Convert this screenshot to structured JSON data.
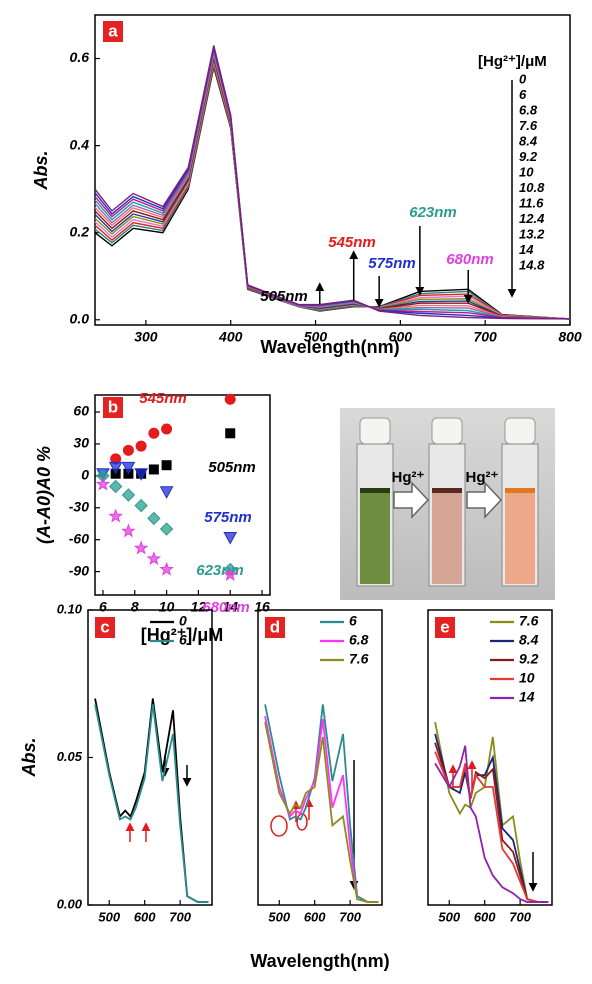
{
  "chart_data": [
    {
      "type": "line",
      "panel": "a",
      "xlabel": "Wavelength(nm)",
      "ylabel": "Abs.",
      "legend_title": "[Hg²⁺]/μM",
      "x": [
        240,
        260,
        285,
        320,
        350,
        380,
        400,
        420,
        480,
        505,
        545,
        575,
        623,
        680,
        720,
        800
      ],
      "xlim": [
        240,
        800
      ],
      "xticks": [
        300,
        400,
        500,
        600,
        700,
        800
      ],
      "ylim": [
        -0.012,
        0.7
      ],
      "yticks": [
        {
          "value": 0,
          "label": "0.0"
        },
        0.2,
        0.4,
        0.6
      ],
      "series": [
        {
          "name": "0",
          "color": "#000000",
          "values": [
            0.2,
            0.17,
            0.21,
            0.2,
            0.3,
            0.58,
            0.44,
            0.07,
            0.03,
            0.02,
            0.03,
            0.03,
            0.065,
            0.07,
            0.012,
            0.002
          ]
        },
        {
          "name": "6",
          "color": "#2e7d7d",
          "values": [
            0.208,
            0.177,
            0.217,
            0.205,
            0.304,
            0.584,
            0.443,
            0.071,
            0.03,
            0.021,
            0.031,
            0.029,
            0.06,
            0.065,
            0.011,
            0.002
          ]
        },
        {
          "name": "6.8",
          "color": "#d62728",
          "values": [
            0.217,
            0.183,
            0.223,
            0.21,
            0.308,
            0.588,
            0.445,
            0.072,
            0.031,
            0.023,
            0.033,
            0.028,
            0.056,
            0.059,
            0.011,
            0.002
          ]
        },
        {
          "name": "7.6",
          "color": "#e377c2",
          "values": [
            0.225,
            0.19,
            0.23,
            0.215,
            0.313,
            0.593,
            0.448,
            0.073,
            0.031,
            0.024,
            0.034,
            0.028,
            0.051,
            0.054,
            0.01,
            0.002
          ]
        },
        {
          "name": "8.4",
          "color": "#8c8c1a",
          "values": [
            0.233,
            0.197,
            0.237,
            0.22,
            0.317,
            0.597,
            0.45,
            0.073,
            0.032,
            0.025,
            0.035,
            0.027,
            0.047,
            0.048,
            0.009,
            0.002
          ]
        },
        {
          "name": "9.2",
          "color": "#1f3f9f",
          "values": [
            0.242,
            0.203,
            0.243,
            0.225,
            0.321,
            0.601,
            0.453,
            0.074,
            0.032,
            0.026,
            0.036,
            0.026,
            0.042,
            0.043,
            0.008,
            0.002
          ]
        },
        {
          "name": "10",
          "color": "#8b1a1a",
          "values": [
            0.25,
            0.21,
            0.25,
            0.23,
            0.325,
            0.605,
            0.455,
            0.075,
            0.033,
            0.028,
            0.038,
            0.025,
            0.038,
            0.038,
            0.008,
            0.002
          ]
        },
        {
          "name": "10.8",
          "color": "#ff6b6b",
          "values": [
            0.258,
            0.217,
            0.257,
            0.235,
            0.329,
            0.609,
            0.458,
            0.076,
            0.033,
            0.029,
            0.039,
            0.024,
            0.033,
            0.032,
            0.007,
            0.002
          ]
        },
        {
          "name": "11.6",
          "color": "#9467bd",
          "values": [
            0.267,
            0.223,
            0.263,
            0.24,
            0.333,
            0.613,
            0.46,
            0.077,
            0.033,
            0.03,
            0.04,
            0.023,
            0.028,
            0.027,
            0.006,
            0.002
          ]
        },
        {
          "name": "12.4",
          "color": "#17a2a2",
          "values": [
            0.275,
            0.23,
            0.27,
            0.245,
            0.338,
            0.618,
            0.463,
            0.078,
            0.034,
            0.031,
            0.041,
            0.023,
            0.024,
            0.021,
            0.005,
            0.002
          ]
        },
        {
          "name": "13.2",
          "color": "#c71585",
          "values": [
            0.283,
            0.237,
            0.277,
            0.25,
            0.342,
            0.622,
            0.465,
            0.078,
            0.034,
            0.033,
            0.043,
            0.022,
            0.019,
            0.016,
            0.005,
            0.002
          ]
        },
        {
          "name": "14",
          "color": "#2233cc",
          "values": [
            0.292,
            0.243,
            0.283,
            0.255,
            0.346,
            0.626,
            0.468,
            0.079,
            0.035,
            0.034,
            0.044,
            0.021,
            0.015,
            0.01,
            0.004,
            0.002
          ]
        },
        {
          "name": "14.8",
          "color": "#7b1f7b",
          "values": [
            0.3,
            0.25,
            0.29,
            0.26,
            0.35,
            0.63,
            0.47,
            0.08,
            0.035,
            0.035,
            0.045,
            0.02,
            0.01,
            0.005,
            0.003,
            0.002
          ]
        }
      ],
      "annotations": [
        {
          "text": "505nm",
          "x": 505,
          "direction": "up",
          "color": "#000000"
        },
        {
          "text": "545nm",
          "x": 545,
          "direction": "up",
          "color": "#e41a1c"
        },
        {
          "text": "575nm",
          "x": 575,
          "direction": "down",
          "color": "#1f2fd0"
        },
        {
          "text": "623nm",
          "x": 623,
          "direction": "down",
          "color": "#2a9d8f"
        },
        {
          "text": "680nm",
          "x": 680,
          "direction": "down",
          "color": "#e040e0"
        }
      ]
    },
    {
      "type": "scatter",
      "panel": "b",
      "xlabel": "[Hg²⁺]/μM",
      "ylabel": "(A-A0)A0 %",
      "x": [
        6,
        6.8,
        7.6,
        8.4,
        9.2,
        10,
        14
      ],
      "xlim": [
        5.5,
        16.5
      ],
      "xticks": [
        6,
        8,
        10,
        12,
        14,
        16
      ],
      "ylim": [
        -112,
        76
      ],
      "yticks": [
        60,
        30,
        0,
        -30,
        -60,
        -90
      ],
      "series": [
        {
          "name": "545nm",
          "color": "#e41a1c",
          "marker": "circle",
          "values": [
            null,
            16,
            24,
            28,
            40,
            44,
            72
          ]
        },
        {
          "name": "505nm",
          "color": "#000000",
          "marker": "square",
          "values": [
            null,
            2,
            2,
            2,
            6,
            10,
            40
          ]
        },
        {
          "name": "575nm",
          "color": "#1f2fd0",
          "marker": "triangle",
          "values": [
            2,
            8,
            8,
            2,
            null,
            -15,
            -58
          ]
        },
        {
          "name": "623nm",
          "color": "#2a9d8f",
          "marker": "diamond",
          "values": [
            0,
            -10,
            -18,
            -28,
            -40,
            -50,
            -88
          ]
        },
        {
          "name": "680nm",
          "color": "#e040e0",
          "marker": "star",
          "values": [
            -8,
            -38,
            -52,
            -68,
            -78,
            -88,
            -93
          ]
        }
      ]
    },
    {
      "type": "line",
      "panel": "c",
      "ylabel": "Abs.",
      "x": [
        460,
        500,
        530,
        545,
        560,
        575,
        600,
        623,
        650,
        680,
        700,
        720,
        750,
        780
      ],
      "xlim": [
        440,
        790
      ],
      "xticks": [
        500,
        600,
        700
      ],
      "ylim": [
        0,
        0.1
      ],
      "yticks": [
        {
          "value": 0,
          "label": "0.00"
        },
        0.05,
        {
          "value": 0.1,
          "label": "0.10"
        }
      ],
      "series": [
        {
          "name": "0",
          "color": "#000000",
          "values": [
            0.07,
            0.045,
            0.03,
            0.032,
            0.03,
            0.035,
            0.045,
            0.07,
            0.045,
            0.066,
            0.03,
            0.003,
            0.001,
            0.001
          ]
        },
        {
          "name": "6",
          "color": "#2a8c8c",
          "values": [
            0.068,
            0.044,
            0.029,
            0.03,
            0.029,
            0.033,
            0.043,
            0.068,
            0.042,
            0.058,
            0.027,
            0.003,
            0.001,
            0.001
          ]
        }
      ]
    },
    {
      "type": "line",
      "panel": "d",
      "xlabel": "Wavelength(nm)",
      "x": [
        460,
        500,
        530,
        545,
        560,
        575,
        600,
        623,
        650,
        680,
        700,
        720,
        750,
        780
      ],
      "xlim": [
        440,
        790
      ],
      "xticks": [
        500,
        600,
        700
      ],
      "ylim": [
        0,
        0.1
      ],
      "series": [
        {
          "name": "6",
          "color": "#2a8c8c",
          "values": [
            0.068,
            0.044,
            0.029,
            0.03,
            0.029,
            0.033,
            0.043,
            0.068,
            0.042,
            0.058,
            0.027,
            0.003,
            0.001,
            0.001
          ]
        },
        {
          "name": "6.8",
          "color": "#ff33ff",
          "values": [
            0.064,
            0.04,
            0.03,
            0.032,
            0.031,
            0.036,
            0.042,
            0.063,
            0.033,
            0.044,
            0.02,
            0.002,
            0.001,
            0.001
          ]
        },
        {
          "name": "7.6",
          "color": "#8c8c1a",
          "values": [
            0.062,
            0.038,
            0.031,
            0.034,
            0.033,
            0.038,
            0.04,
            0.057,
            0.027,
            0.03,
            0.015,
            0.002,
            0.001,
            0.001
          ]
        }
      ]
    },
    {
      "type": "line",
      "panel": "e",
      "x": [
        460,
        500,
        530,
        545,
        560,
        575,
        600,
        623,
        650,
        680,
        700,
        720,
        750,
        780
      ],
      "xlim": [
        440,
        790
      ],
      "xticks": [
        500,
        600,
        700
      ],
      "ylim": [
        0,
        0.1
      ],
      "series": [
        {
          "name": "7.6",
          "color": "#8c8c1a",
          "values": [
            0.062,
            0.038,
            0.031,
            0.034,
            0.033,
            0.038,
            0.04,
            0.057,
            0.027,
            0.03,
            0.015,
            0.002,
            0.001,
            0.001
          ]
        },
        {
          "name": "8.4",
          "color": "#1a237e",
          "values": [
            0.058,
            0.04,
            0.038,
            0.045,
            0.036,
            0.044,
            0.044,
            0.05,
            0.026,
            0.022,
            0.012,
            0.002,
            0.001,
            0.001
          ]
        },
        {
          "name": "9.2",
          "color": "#8b1a1a",
          "values": [
            0.055,
            0.04,
            0.04,
            0.047,
            0.036,
            0.045,
            0.043,
            0.046,
            0.022,
            0.018,
            0.01,
            0.002,
            0.001,
            0.001
          ]
        },
        {
          "name": "10",
          "color": "#e53935",
          "values": [
            0.052,
            0.04,
            0.04,
            0.048,
            0.036,
            0.044,
            0.04,
            0.04,
            0.019,
            0.014,
            0.008,
            0.002,
            0.001,
            0.001
          ]
        },
        {
          "name": "14",
          "color": "#8e24aa",
          "values": [
            0.048,
            0.04,
            0.047,
            0.054,
            0.033,
            0.03,
            0.016,
            0.01,
            0.006,
            0.004,
            0.002,
            0.001,
            0.001,
            0.001
          ]
        }
      ]
    }
  ],
  "photo": {
    "labels": [
      "Hg²⁺",
      "Hg²⁺"
    ]
  }
}
